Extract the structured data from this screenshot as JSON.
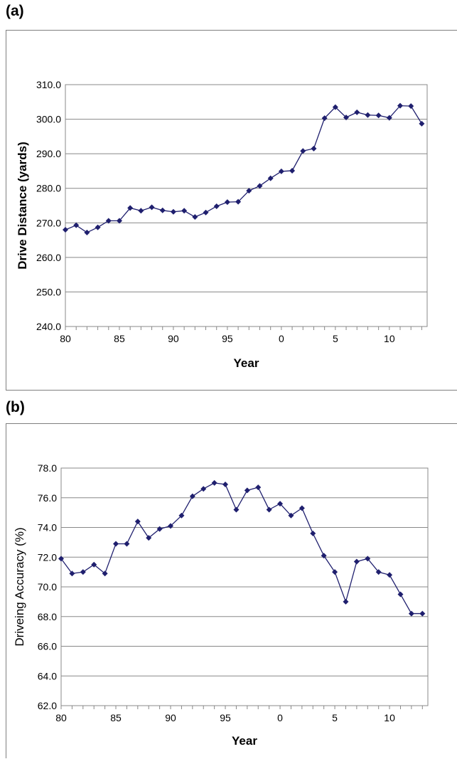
{
  "panels": {
    "a": {
      "label": "(a)"
    },
    "b": {
      "label": "(b)"
    }
  },
  "chart_data": [
    {
      "type": "line",
      "title": "",
      "xlabel": "Year",
      "ylabel": "Drive Distance (yards)",
      "x": [
        1980,
        1981,
        1982,
        1983,
        1984,
        1985,
        1986,
        1987,
        1988,
        1989,
        1990,
        1991,
        1992,
        1993,
        1994,
        1995,
        1996,
        1997,
        1998,
        1999,
        2000,
        2001,
        2002,
        2003,
        2004,
        2005,
        2006,
        2007,
        2008,
        2009,
        2010,
        2011,
        2012,
        2013
      ],
      "x_ticks": [
        1980,
        1985,
        1990,
        1995,
        2000,
        2005,
        2010
      ],
      "x_tick_labels": [
        "80",
        "85",
        "90",
        "95",
        "0",
        "5",
        "10"
      ],
      "xlim": [
        1980,
        2013.5
      ],
      "ylim": [
        240,
        310
      ],
      "y_ticks": [
        "240.0",
        "250.0",
        "260.0",
        "270.0",
        "280.0",
        "290.0",
        "300.0",
        "310.0"
      ],
      "grid": "horizontal",
      "marker": "diamond",
      "color": "#1f1f6e",
      "series": [
        {
          "values": [
            268.0,
            269.3,
            267.2,
            268.7,
            270.6,
            270.6,
            274.3,
            273.5,
            274.5,
            273.6,
            273.2,
            273.5,
            271.7,
            273.0,
            274.8,
            276.0,
            276.1,
            279.3,
            280.7,
            282.9,
            284.9,
            285.1,
            290.8,
            291.5,
            300.3,
            303.5,
            300.5,
            302.0,
            301.2,
            301.1,
            300.4,
            303.9,
            303.8,
            298.7
          ]
        }
      ]
    },
    {
      "type": "line",
      "title": "",
      "xlabel": "Year",
      "ylabel": "Driveing Accuracy (%)",
      "x": [
        1980,
        1981,
        1982,
        1983,
        1984,
        1985,
        1986,
        1987,
        1988,
        1989,
        1990,
        1991,
        1992,
        1993,
        1994,
        1995,
        1996,
        1997,
        1998,
        1999,
        2000,
        2001,
        2002,
        2003,
        2004,
        2005,
        2006,
        2007,
        2008,
        2009,
        2010,
        2011,
        2012,
        2013
      ],
      "x_ticks": [
        1980,
        1985,
        1990,
        1995,
        2000,
        2005,
        2010
      ],
      "x_tick_labels": [
        "80",
        "85",
        "90",
        "95",
        "0",
        "5",
        "10"
      ],
      "xlim": [
        1980,
        2013.5
      ],
      "ylim": [
        62,
        78
      ],
      "y_ticks": [
        "62.0",
        "64.0",
        "66.0",
        "68.0",
        "70.0",
        "72.0",
        "74.0",
        "76.0",
        "78.0"
      ],
      "grid": "horizontal",
      "marker": "diamond",
      "color": "#1f1f6e",
      "series": [
        {
          "values": [
            71.9,
            70.9,
            71.0,
            71.5,
            70.9,
            72.9,
            72.9,
            74.4,
            73.3,
            73.9,
            74.1,
            74.8,
            76.1,
            76.6,
            77.0,
            76.9,
            75.2,
            76.5,
            76.7,
            75.2,
            75.6,
            74.8,
            75.3,
            73.6,
            72.1,
            71.0,
            69.0,
            71.7,
            71.9,
            71.0,
            70.8,
            69.5,
            68.2,
            68.2
          ]
        }
      ]
    }
  ]
}
